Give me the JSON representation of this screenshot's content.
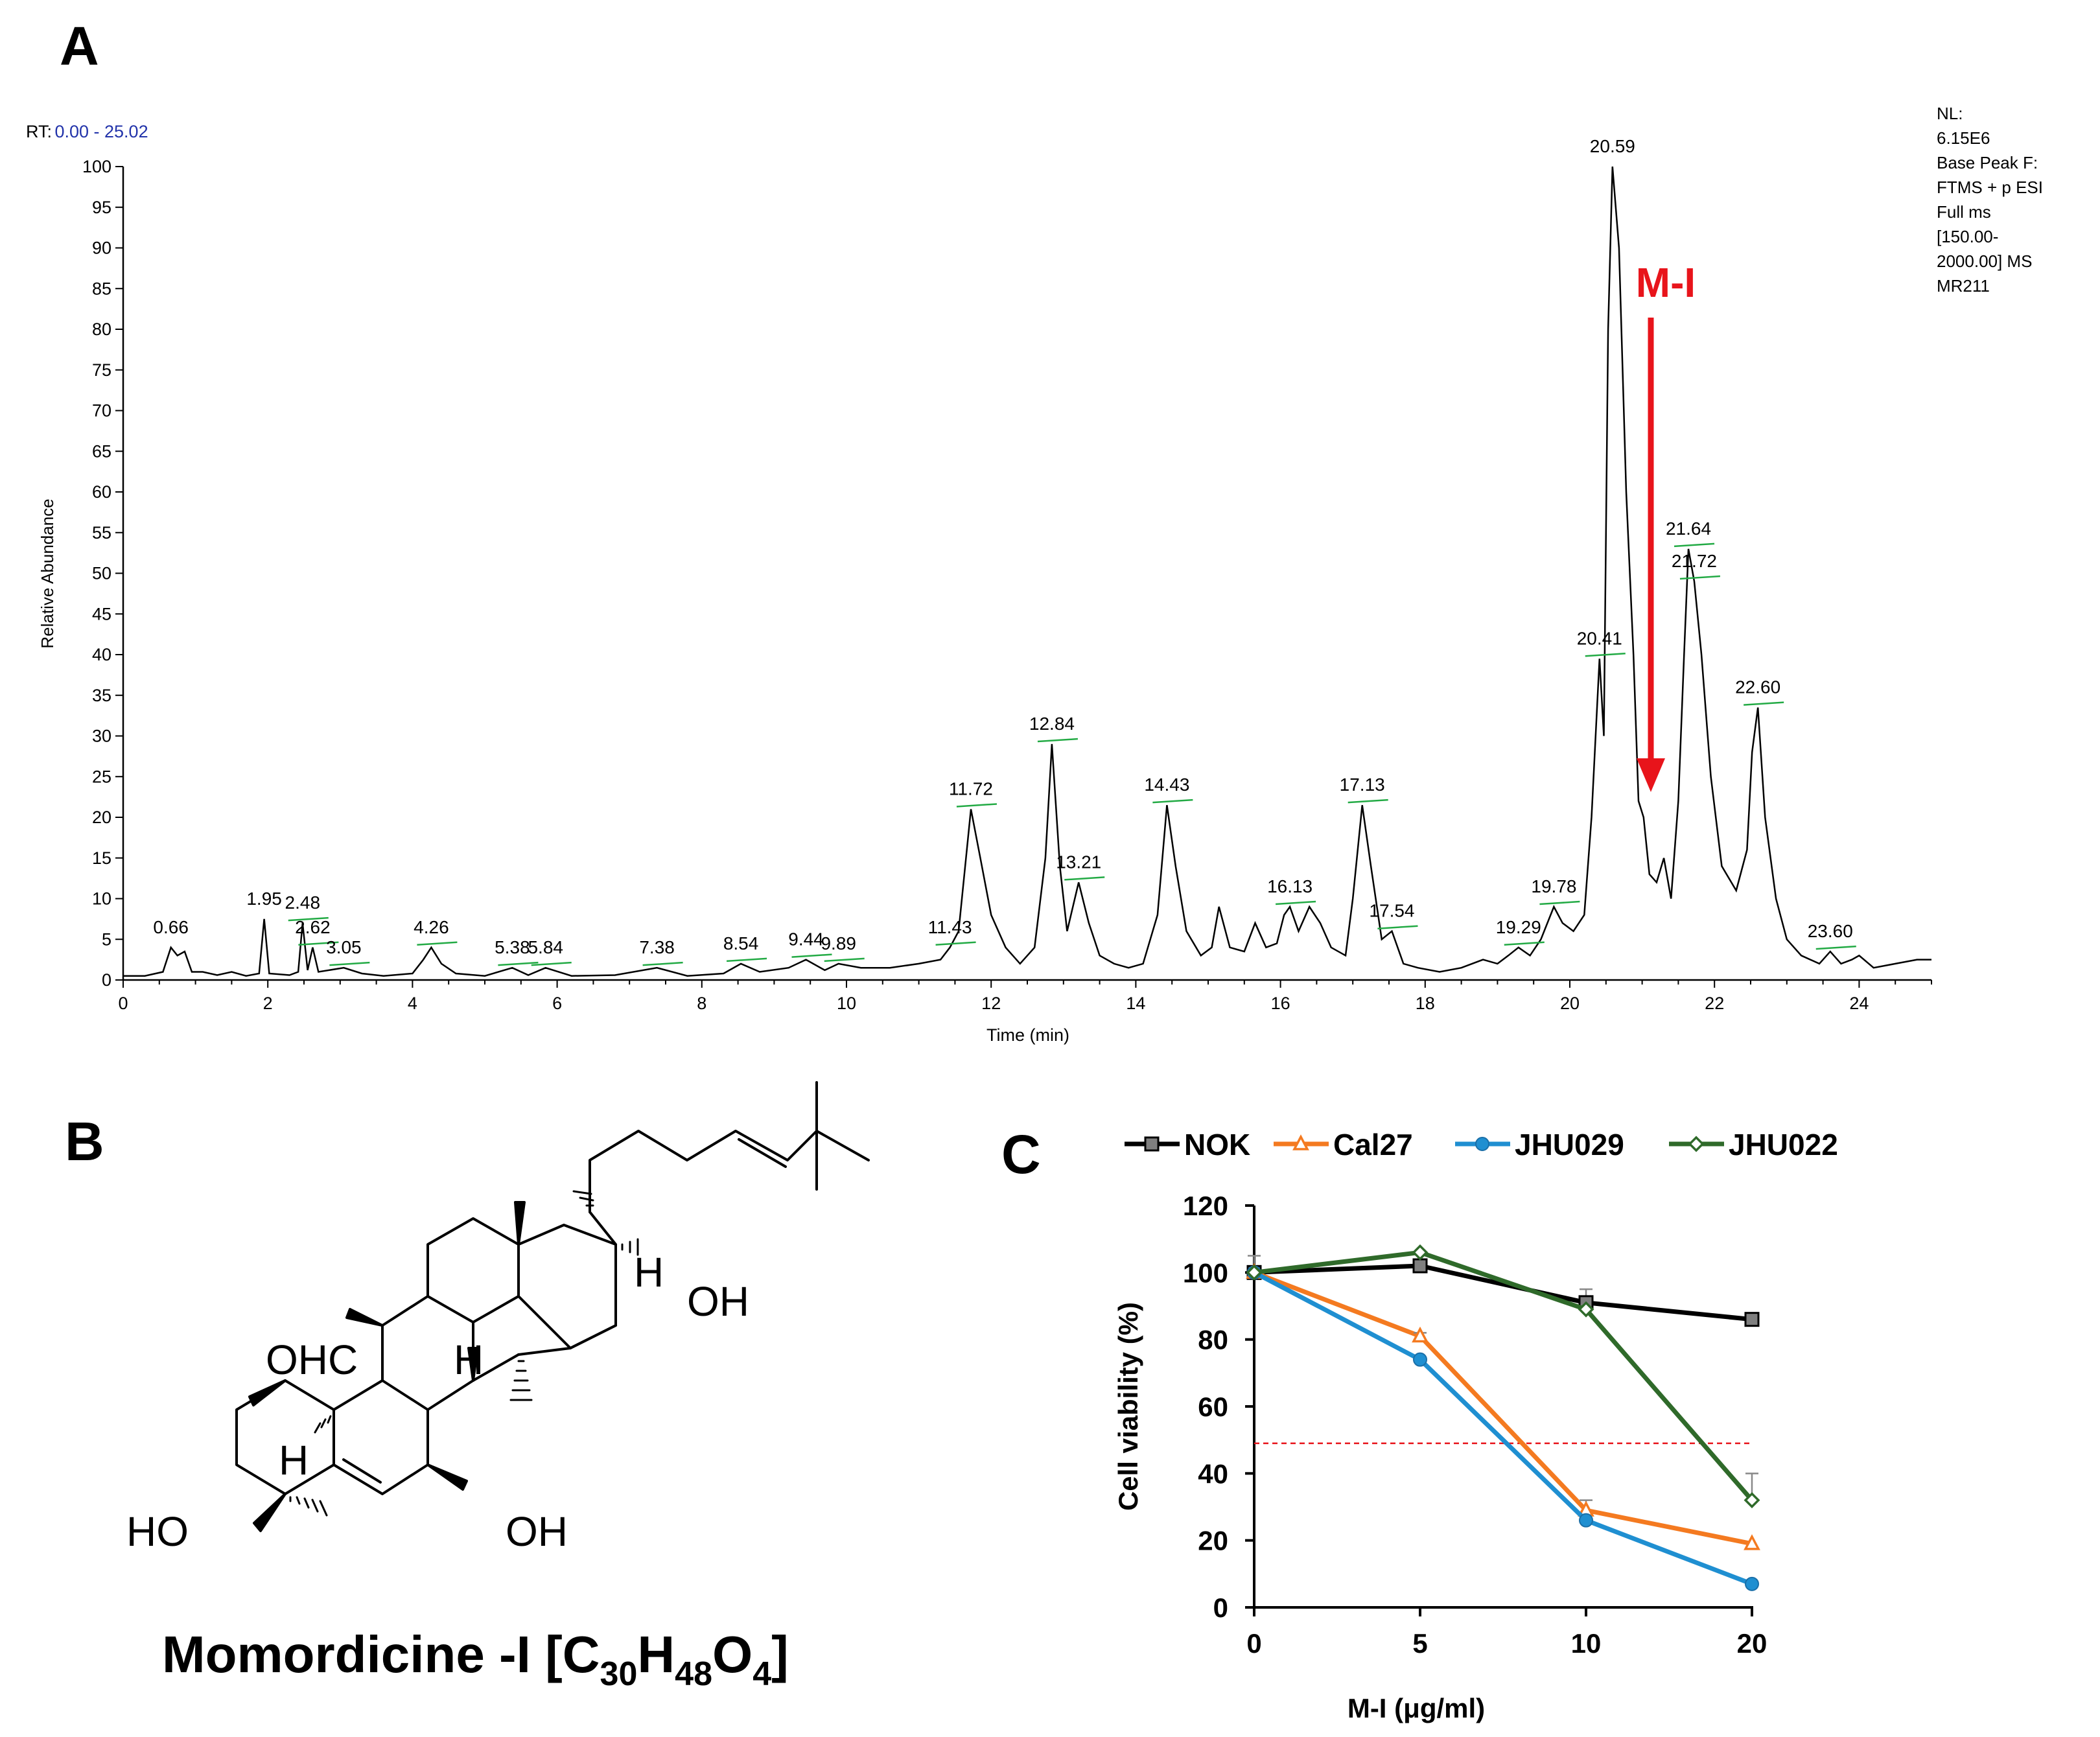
{
  "panels": {
    "a": "A",
    "b": "B",
    "c": "C"
  },
  "chromatogram": {
    "rt_label": "RT:",
    "rt_value": "0.00 - 25.02",
    "info_lines": [
      "NL:",
      "6.15E6",
      "Base Peak F:",
      "FTMS + p ESI",
      "Full ms",
      "[150.00-",
      "2000.00] MS",
      "MR211"
    ],
    "annotation": "M-I",
    "annotation_color": "#e8141b",
    "integration_color": "#22aa44"
  },
  "structure": {
    "title_main": "Momordicine -I [C",
    "sub1": "30",
    "h": "H",
    "sub2": "48",
    "o": "O",
    "sub3": "4",
    "close": "]",
    "labels": {
      "ohc": "OHC",
      "ho": "HO",
      "oh_bottom": "OH",
      "oh_side": "OH",
      "h_chain": "H",
      "h_center": "H",
      "h_left": "H"
    }
  },
  "chart_data": [
    {
      "type": "line",
      "title": "",
      "xlabel": "Time (min)",
      "ylabel": "Relative Abundance",
      "xlim": [
        0,
        25
      ],
      "ylim": [
        0,
        100
      ],
      "x_ticks": [
        0,
        2,
        4,
        6,
        8,
        10,
        12,
        14,
        16,
        18,
        20,
        22,
        24
      ],
      "y_ticks": [
        0,
        5,
        10,
        15,
        20,
        25,
        30,
        35,
        40,
        45,
        50,
        55,
        60,
        65,
        70,
        75,
        80,
        85,
        90,
        95,
        100
      ],
      "grid": false,
      "legend": "none",
      "series_color": "#000000",
      "peaks": [
        {
          "rt": 0.66,
          "y": 4,
          "label": "0.66"
        },
        {
          "rt": 1.95,
          "y": 7.5,
          "label": "1.95"
        },
        {
          "rt": 2.48,
          "y": 7,
          "label": "2.48"
        },
        {
          "rt": 2.62,
          "y": 4,
          "label": "2.62"
        },
        {
          "rt": 3.05,
          "y": 1.5,
          "label": "3.05"
        },
        {
          "rt": 4.26,
          "y": 4,
          "label": "4.26"
        },
        {
          "rt": 5.38,
          "y": 1.5,
          "label": "5.38"
        },
        {
          "rt": 5.84,
          "y": 1.5,
          "label": "5.84"
        },
        {
          "rt": 7.38,
          "y": 1.5,
          "label": "7.38"
        },
        {
          "rt": 8.54,
          "y": 2,
          "label": "8.54"
        },
        {
          "rt": 9.44,
          "y": 2.5,
          "label": "9.44"
        },
        {
          "rt": 9.89,
          "y": 2,
          "label": "9.89"
        },
        {
          "rt": 11.43,
          "y": 4,
          "label": "11.43"
        },
        {
          "rt": 11.72,
          "y": 21,
          "label": "11.72"
        },
        {
          "rt": 12.84,
          "y": 29,
          "label": "12.84"
        },
        {
          "rt": 13.21,
          "y": 12,
          "label": "13.21"
        },
        {
          "rt": 14.43,
          "y": 21.5,
          "label": "14.43"
        },
        {
          "rt": 16.13,
          "y": 9,
          "label": "16.13"
        },
        {
          "rt": 17.13,
          "y": 21.5,
          "label": "17.13"
        },
        {
          "rt": 17.54,
          "y": 6,
          "label": "17.54"
        },
        {
          "rt": 19.29,
          "y": 4,
          "label": "19.29"
        },
        {
          "rt": 19.78,
          "y": 9,
          "label": "19.78"
        },
        {
          "rt": 20.41,
          "y": 39.5,
          "label": "20.41"
        },
        {
          "rt": 20.59,
          "y": 100,
          "label": "20.59"
        },
        {
          "rt": 21.64,
          "y": 53,
          "label": "21.64"
        },
        {
          "rt": 21.72,
          "y": 49,
          "label": "21.72"
        },
        {
          "rt": 22.6,
          "y": 33.5,
          "label": "22.60"
        },
        {
          "rt": 23.6,
          "y": 3.5,
          "label": "23.60"
        }
      ],
      "trace": [
        [
          0.0,
          0.5
        ],
        [
          0.3,
          0.5
        ],
        [
          0.55,
          1.0
        ],
        [
          0.66,
          4.0
        ],
        [
          0.75,
          3.0
        ],
        [
          0.85,
          3.5
        ],
        [
          0.95,
          1.0
        ],
        [
          1.1,
          1.0
        ],
        [
          1.3,
          0.6
        ],
        [
          1.5,
          1.0
        ],
        [
          1.7,
          0.5
        ],
        [
          1.88,
          0.8
        ],
        [
          1.95,
          7.5
        ],
        [
          2.02,
          0.8
        ],
        [
          2.3,
          0.6
        ],
        [
          2.42,
          1.0
        ],
        [
          2.48,
          7.0
        ],
        [
          2.55,
          1.2
        ],
        [
          2.62,
          4.0
        ],
        [
          2.7,
          1.0
        ],
        [
          3.05,
          1.5
        ],
        [
          3.3,
          0.8
        ],
        [
          3.6,
          0.5
        ],
        [
          4.0,
          0.8
        ],
        [
          4.15,
          2.5
        ],
        [
          4.26,
          4.0
        ],
        [
          4.4,
          2.0
        ],
        [
          4.6,
          0.8
        ],
        [
          5.0,
          0.5
        ],
        [
          5.38,
          1.5
        ],
        [
          5.6,
          0.6
        ],
        [
          5.84,
          1.5
        ],
        [
          6.2,
          0.5
        ],
        [
          6.8,
          0.6
        ],
        [
          7.38,
          1.5
        ],
        [
          7.8,
          0.5
        ],
        [
          8.3,
          0.8
        ],
        [
          8.54,
          2.0
        ],
        [
          8.8,
          1.0
        ],
        [
          9.2,
          1.5
        ],
        [
          9.44,
          2.5
        ],
        [
          9.7,
          1.2
        ],
        [
          9.89,
          2.0
        ],
        [
          10.2,
          1.5
        ],
        [
          10.6,
          1.5
        ],
        [
          11.0,
          2.0
        ],
        [
          11.3,
          2.5
        ],
        [
          11.43,
          4.0
        ],
        [
          11.55,
          6.0
        ],
        [
          11.72,
          21.0
        ],
        [
          11.85,
          15.0
        ],
        [
          12.0,
          8.0
        ],
        [
          12.2,
          4.0
        ],
        [
          12.4,
          2.0
        ],
        [
          12.6,
          4.0
        ],
        [
          12.75,
          15.0
        ],
        [
          12.84,
          29.0
        ],
        [
          12.95,
          14.0
        ],
        [
          13.05,
          6.0
        ],
        [
          13.21,
          12.0
        ],
        [
          13.35,
          7.0
        ],
        [
          13.5,
          3.0
        ],
        [
          13.7,
          2.0
        ],
        [
          13.9,
          1.5
        ],
        [
          14.1,
          2.0
        ],
        [
          14.3,
          8.0
        ],
        [
          14.43,
          21.5
        ],
        [
          14.55,
          14.0
        ],
        [
          14.7,
          6.0
        ],
        [
          14.9,
          3.0
        ],
        [
          15.05,
          4.0
        ],
        [
          15.15,
          9.0
        ],
        [
          15.3,
          4.0
        ],
        [
          15.5,
          3.5
        ],
        [
          15.65,
          7.0
        ],
        [
          15.8,
          4.0
        ],
        [
          15.95,
          4.5
        ],
        [
          16.05,
          8.0
        ],
        [
          16.13,
          9.0
        ],
        [
          16.25,
          6.0
        ],
        [
          16.4,
          9.0
        ],
        [
          16.55,
          7.0
        ],
        [
          16.7,
          4.0
        ],
        [
          16.9,
          3.0
        ],
        [
          17.0,
          10.0
        ],
        [
          17.13,
          21.5
        ],
        [
          17.25,
          14.0
        ],
        [
          17.4,
          5.0
        ],
        [
          17.54,
          6.0
        ],
        [
          17.7,
          2.0
        ],
        [
          17.9,
          1.5
        ],
        [
          18.2,
          1.0
        ],
        [
          18.5,
          1.5
        ],
        [
          18.8,
          2.5
        ],
        [
          19.0,
          2.0
        ],
        [
          19.15,
          3.0
        ],
        [
          19.29,
          4.0
        ],
        [
          19.45,
          3.0
        ],
        [
          19.6,
          5.0
        ],
        [
          19.78,
          9.0
        ],
        [
          19.9,
          7.0
        ],
        [
          20.05,
          6.0
        ],
        [
          20.2,
          8.0
        ],
        [
          20.3,
          20.0
        ],
        [
          20.41,
          39.5
        ],
        [
          20.47,
          30.0
        ],
        [
          20.53,
          80.0
        ],
        [
          20.59,
          100.0
        ],
        [
          20.68,
          90.0
        ],
        [
          20.78,
          60.0
        ],
        [
          20.88,
          40.0
        ],
        [
          20.95,
          22.0
        ],
        [
          21.02,
          20.0
        ],
        [
          21.1,
          13.0
        ],
        [
          21.2,
          12.0
        ],
        [
          21.3,
          15.0
        ],
        [
          21.4,
          10.0
        ],
        [
          21.5,
          22.0
        ],
        [
          21.58,
          40.0
        ],
        [
          21.64,
          53.0
        ],
        [
          21.72,
          49.0
        ],
        [
          21.82,
          40.0
        ],
        [
          21.95,
          25.0
        ],
        [
          22.1,
          14.0
        ],
        [
          22.3,
          11.0
        ],
        [
          22.45,
          16.0
        ],
        [
          22.52,
          28.0
        ],
        [
          22.6,
          33.5
        ],
        [
          22.7,
          20.0
        ],
        [
          22.85,
          10.0
        ],
        [
          23.0,
          5.0
        ],
        [
          23.2,
          3.0
        ],
        [
          23.45,
          2.0
        ],
        [
          23.6,
          3.5
        ],
        [
          23.75,
          2.0
        ],
        [
          23.9,
          2.5
        ],
        [
          24.0,
          3.0
        ],
        [
          24.2,
          1.5
        ],
        [
          24.5,
          2.0
        ],
        [
          24.8,
          2.5
        ],
        [
          25.0,
          2.5
        ]
      ]
    },
    {
      "type": "line",
      "title": "",
      "xlabel": "M-I (μg/ml)",
      "ylabel": "Cell viability (%)",
      "categories": [
        "0",
        "5",
        "10",
        "20"
      ],
      "y_ticks": [
        0,
        20,
        40,
        60,
        80,
        100,
        120
      ],
      "ylim": [
        0,
        120
      ],
      "legend": "top",
      "threshold": 49,
      "threshold_color": "#e8141b",
      "series": [
        {
          "name": "NOK",
          "values": [
            100,
            102,
            91,
            86
          ],
          "errors": [
            5,
            0,
            4,
            0
          ],
          "color": "#000000",
          "marker": "square",
          "marker_fill": "#7f7f7f"
        },
        {
          "name": "Cal27",
          "values": [
            100,
            81,
            29,
            19
          ],
          "errors": [
            0,
            1,
            3,
            0
          ],
          "color": "#f47a20",
          "marker": "triangle",
          "marker_fill": "#ffffff"
        },
        {
          "name": "JHU029",
          "values": [
            100,
            74,
            26,
            7
          ],
          "errors": [
            0,
            0,
            0,
            0
          ],
          "color": "#1f8fd1",
          "marker": "circle",
          "marker_fill": "#1f8fd1"
        },
        {
          "name": "JHU022",
          "values": [
            100,
            106,
            89,
            32
          ],
          "errors": [
            0,
            0,
            0,
            8
          ],
          "color": "#2f6a2a",
          "marker": "diamond",
          "marker_fill": "#ffffff"
        }
      ]
    }
  ]
}
